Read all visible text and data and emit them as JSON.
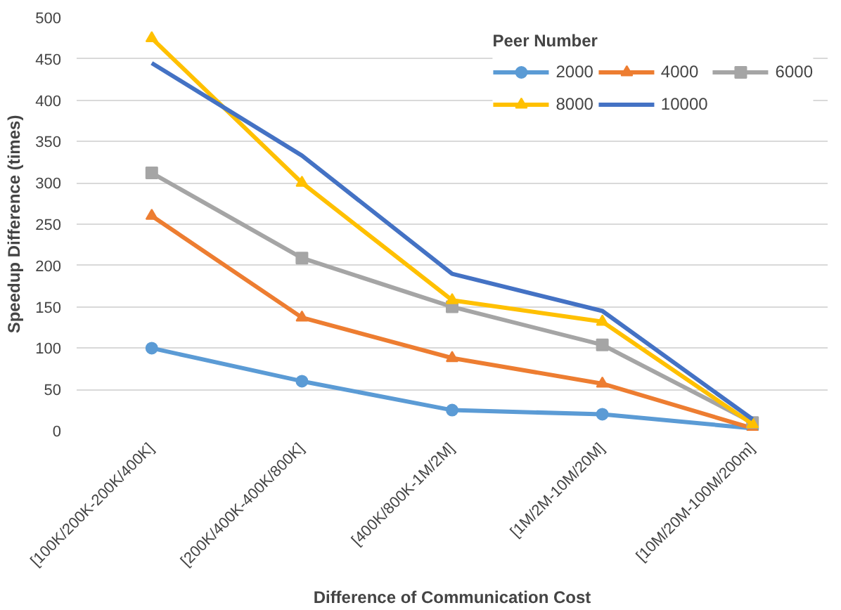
{
  "chart_data": {
    "type": "line",
    "xlabel": "Difference of Communication Cost",
    "ylabel": "Speedup Difference (times)",
    "legend_title": "Peer Number",
    "categories": [
      "[100K/200K-200K/400K]",
      "[200K/400K-400K/800K]",
      "[400K/800K-1M/2M]",
      "[1M/2M-10M/20M]",
      "[10M/20M-100M/200m]"
    ],
    "series": [
      {
        "name": "2000",
        "color": "#5b9bd5",
        "marker": "circle",
        "values": [
          100,
          60,
          25,
          20,
          3
        ]
      },
      {
        "name": "4000",
        "color": "#ed7d31",
        "marker": "triangle",
        "values": [
          260,
          137,
          88,
          57,
          3
        ]
      },
      {
        "name": "6000",
        "color": "#a5a5a5",
        "marker": "square",
        "values": [
          312,
          209,
          150,
          104,
          10
        ]
      },
      {
        "name": "8000",
        "color": "#ffc000",
        "marker": "triangle",
        "values": [
          475,
          300,
          158,
          132,
          8
        ]
      },
      {
        "name": "10000",
        "color": "#4472c4",
        "marker": "none",
        "values": [
          445,
          333,
          190,
          145,
          14
        ]
      }
    ],
    "ylim": [
      0,
      500
    ],
    "yticks": [
      0,
      50,
      100,
      150,
      200,
      250,
      300,
      350,
      400,
      450,
      500
    ],
    "grid": "y",
    "legend": "top right"
  }
}
